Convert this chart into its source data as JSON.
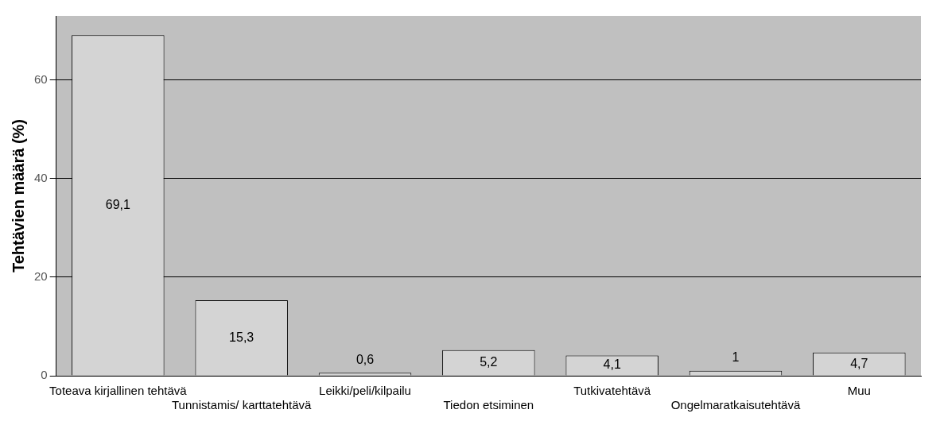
{
  "chart_data": {
    "type": "bar",
    "ylabel": "Tehtävien määrä (%)",
    "categories": [
      "Toteava kirjallinen tehtävä",
      "Tunnistamis/ karttatehtävä",
      "Leikki/peli/kilpailu",
      "Tiedon etsiminen",
      "Tutkivatehtävä",
      "Ongelmaratkaisutehtävä",
      "Muu"
    ],
    "values": [
      69.1,
      15.3,
      0.6,
      5.2,
      4.1,
      1,
      4.7
    ],
    "value_labels": [
      "69,1",
      "15,3",
      "0,6",
      "5,2",
      "4,1",
      "1",
      "4,7"
    ],
    "color": "#d4d4d4",
    "ylim": [
      0,
      73
    ],
    "yticks": [
      0,
      20,
      40,
      60
    ],
    "grid": "y"
  }
}
